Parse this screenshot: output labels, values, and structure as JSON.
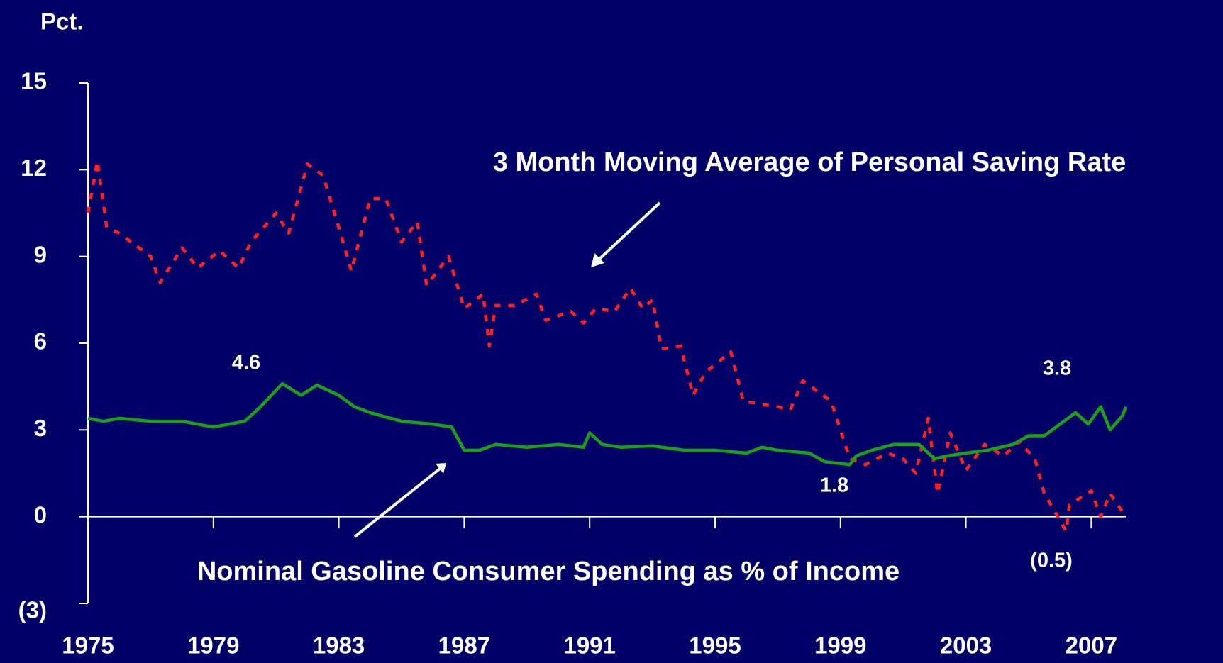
{
  "chart_data": {
    "type": "line",
    "y_label": "Pct.",
    "xlim": [
      1975,
      2008.1
    ],
    "xticks": [
      1975,
      1979,
      1983,
      1987,
      1991,
      1995,
      1999,
      2003,
      2007
    ],
    "ylim": [
      -3,
      15
    ],
    "yticks": [
      {
        "value": -3,
        "label": "(3)"
      },
      0,
      3,
      6,
      9,
      12,
      15
    ],
    "series": [
      {
        "name": "3 Month Moving Average of Personal Saving Rate",
        "color": "#ff2020",
        "style": "dashed",
        "x": [
          1975,
          1975.3,
          1975.6,
          1976,
          1977,
          1977.3,
          1978,
          1978.5,
          1979.2,
          1979.8,
          1980.2,
          1981,
          1981.4,
          1982,
          1982.5,
          1983,
          1983.4,
          1984,
          1984.5,
          1985,
          1985.5,
          1985.8,
          1986.5,
          1987,
          1987.6,
          1987.8,
          1988,
          1988.6,
          1989.3,
          1989.6,
          1990.4,
          1990.8,
          1991.2,
          1991.8,
          1992.3,
          1992.7,
          1993,
          1993.3,
          1993.9,
          1994.3,
          1994.7,
          1995.5,
          1995.9,
          1996.4,
          1997,
          1997.4,
          1997.8,
          1998.7,
          1999.3,
          1999.8,
          2000.5,
          2001,
          2001.4,
          2001.8,
          2002.1,
          2002.5,
          2003,
          2003.6,
          2004.2,
          2004.7,
          2005.2,
          2005.5,
          2006.2,
          2006.3,
          2007,
          2007.3,
          2007.6,
          2008.1
        ],
        "values": [
          10.5,
          12.3,
          10.0,
          9.8,
          9.0,
          8.1,
          9.3,
          8.6,
          9.2,
          8.6,
          9.5,
          10.5,
          9.8,
          12.2,
          11.8,
          10.0,
          8.5,
          11.0,
          11.0,
          9.5,
          10.2,
          8.0,
          9.0,
          7.2,
          7.7,
          5.9,
          7.3,
          7.3,
          7.7,
          6.8,
          7.1,
          6.7,
          7.2,
          7.1,
          7.9,
          7.2,
          7.5,
          5.8,
          5.9,
          4.2,
          5.0,
          5.7,
          4.0,
          3.9,
          3.8,
          3.7,
          4.7,
          4.0,
          2.0,
          1.8,
          2.2,
          2.0,
          1.5,
          3.4,
          0.8,
          2.9,
          1.6,
          2.5,
          2.1,
          2.6,
          2.0,
          0.8,
          -0.5,
          0.4,
          0.9,
          0.0,
          0.8,
          0.0
        ]
      },
      {
        "name": "Nominal Gasoline Consumer Spending as % of Income",
        "color": "#1aa01a",
        "style": "solid",
        "x": [
          1975,
          1975.5,
          1976,
          1977,
          1978,
          1979,
          1980,
          1980.5,
          1981.2,
          1981.8,
          1982.3,
          1983,
          1983.5,
          1984,
          1985,
          1986,
          1986.6,
          1987,
          1987.5,
          1988,
          1989,
          1990,
          1990.8,
          1991,
          1991.4,
          1992,
          1993,
          1994,
          1995,
          1996,
          1996.5,
          1997,
          1998,
          1998.5,
          1999.3,
          1999.5,
          2000,
          2000.7,
          2001.5,
          2002,
          2002.4,
          2003,
          2003.7,
          2004.5,
          2005,
          2005.5,
          2006,
          2006.5,
          2006.9,
          2007.3,
          2007.6,
          2008,
          2008.1
        ],
        "values": [
          3.4,
          3.3,
          3.4,
          3.3,
          3.3,
          3.1,
          3.3,
          3.8,
          4.6,
          4.2,
          4.55,
          4.2,
          3.8,
          3.6,
          3.3,
          3.2,
          3.1,
          2.3,
          2.3,
          2.5,
          2.4,
          2.5,
          2.4,
          2.9,
          2.5,
          2.4,
          2.45,
          2.3,
          2.3,
          2.2,
          2.4,
          2.3,
          2.2,
          1.9,
          1.8,
          2.1,
          2.3,
          2.5,
          2.5,
          2.0,
          2.1,
          2.2,
          2.3,
          2.5,
          2.8,
          2.8,
          3.2,
          3.6,
          3.2,
          3.8,
          3.0,
          3.5,
          3.8
        ]
      }
    ],
    "annotations": [
      "4.6",
      "1.8",
      "3.8",
      "(0.5)"
    ]
  }
}
